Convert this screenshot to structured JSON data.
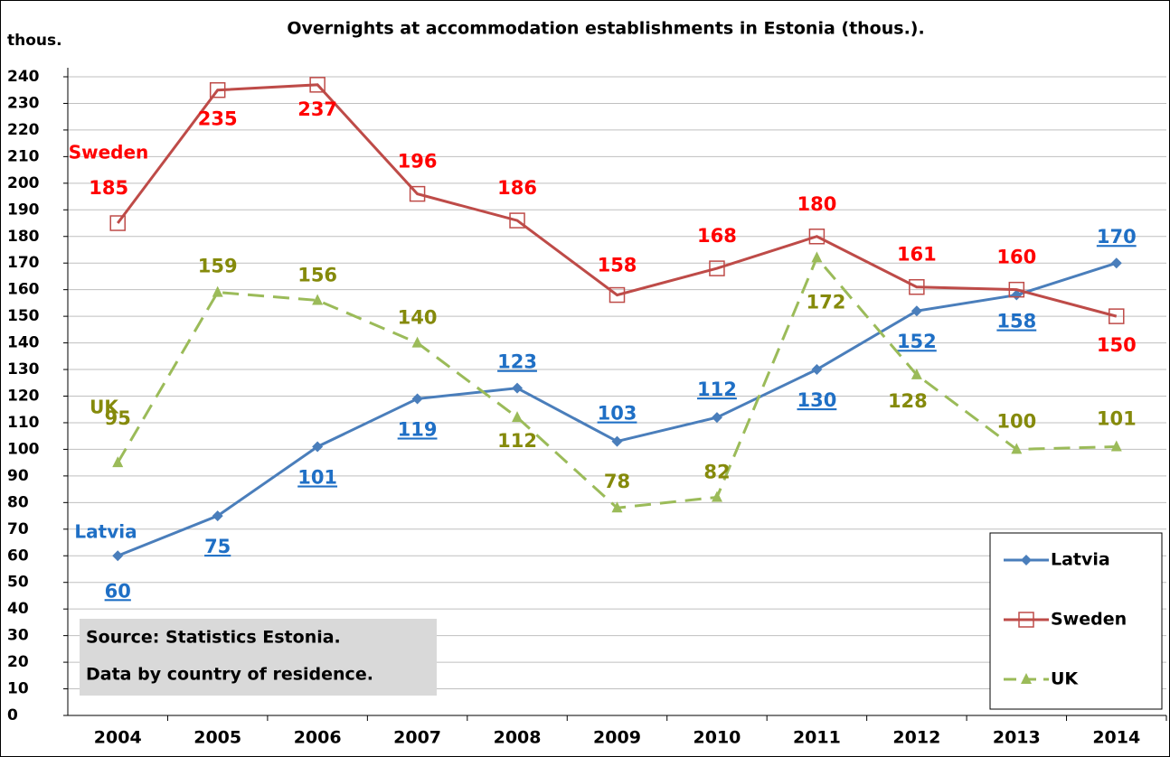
{
  "chart_data": {
    "type": "line",
    "title": "Overnights at accommodation establishments in Estonia (thous.).",
    "y_axis_label": "thous.",
    "annotations": [
      "Source: Statistics Estonia.",
      "Data by country of residence."
    ],
    "categories": [
      "2004",
      "2005",
      "2006",
      "2007",
      "2008",
      "2009",
      "2010",
      "2011",
      "2012",
      "2013",
      "2014"
    ],
    "series": [
      {
        "name": "Latvia",
        "color": "#4a7ebb",
        "label_color": "#1f6fc5",
        "marker": "diamond",
        "dash": false,
        "values": [
          60,
          75,
          101,
          119,
          123,
          103,
          112,
          130,
          152,
          158,
          170
        ]
      },
      {
        "name": "Sweden",
        "color": "#be4b48",
        "label_color": "#ff0000",
        "marker": "square",
        "dash": false,
        "values": [
          185,
          235,
          237,
          196,
          186,
          158,
          168,
          180,
          161,
          160,
          150
        ]
      },
      {
        "name": "UK",
        "color": "#9bbb59",
        "label_color": "#858a0b",
        "marker": "triangle",
        "dash": true,
        "values": [
          95,
          159,
          156,
          140,
          112,
          78,
          82,
          172,
          128,
          100,
          101
        ]
      }
    ],
    "ylim": [
      0,
      240
    ],
    "yticks": [
      0,
      10,
      20,
      30,
      40,
      50,
      60,
      70,
      80,
      90,
      100,
      110,
      120,
      130,
      140,
      150,
      160,
      170,
      180,
      190,
      200,
      210,
      220,
      230,
      240
    ],
    "grid": true,
    "legend": "lower right"
  }
}
